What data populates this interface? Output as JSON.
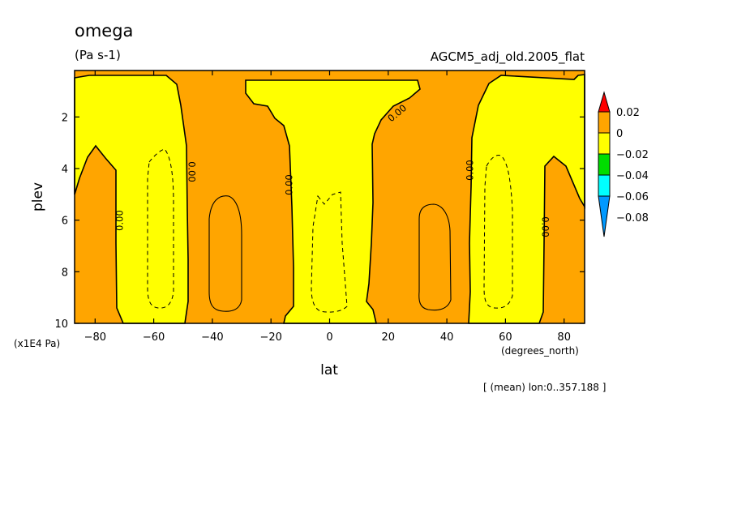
{
  "chart_data": {
    "type": "contour",
    "title": "omega",
    "units": "(Pa s-1)",
    "dataset": "AGCM5_adj_old.2005_flat",
    "xlabel": "lat",
    "xunit": "(degrees_north)",
    "ylabel": "plev",
    "yunit": "(x1E4 Pa)",
    "xlim": [
      -87,
      87
    ],
    "ylim": [
      10,
      0.2
    ],
    "x_ticks": [
      -80,
      -60,
      -40,
      -20,
      0,
      20,
      40,
      60,
      80
    ],
    "y_ticks": [
      2,
      4,
      6,
      8,
      10
    ],
    "x_tick_labels": [
      "−80",
      "−60",
      "−40",
      "−20",
      "0",
      "20",
      "40",
      "60",
      "80"
    ],
    "y_tick_labels": [
      "2",
      "4",
      "6",
      "8",
      "10"
    ],
    "note": "[ (mean) lon:0..357.188 ]",
    "contour_label": "0.00",
    "colorbar": {
      "tick_labels": [
        "0.02",
        "0",
        "−0.02",
        "−0.04",
        "−0.06",
        "−0.08"
      ],
      "colors": [
        "#ff0000",
        "#ffa500",
        "#ffff00",
        "#00dd00",
        "#00ffff",
        "#0099ff"
      ]
    },
    "regions": [
      {
        "sign": "positive",
        "color": "#ffa500",
        "lat_range": [
          -87,
          87
        ],
        "plev_range": [
          0.2,
          10
        ]
      },
      {
        "sign": "negative",
        "color": "#ffff00",
        "approx_lat_range": [
          -87,
          -49
        ],
        "approx_plev_range": [
          0.2,
          10
        ]
      },
      {
        "sign": "negative",
        "color": "#ffff00",
        "approx_lat_range": [
          -30,
          32
        ],
        "approx_plev_range": [
          0.2,
          10
        ]
      },
      {
        "sign": "negative",
        "color": "#ffff00",
        "approx_lat_range": [
          49,
          87
        ],
        "approx_plev_range": [
          0.2,
          10
        ]
      }
    ]
  }
}
